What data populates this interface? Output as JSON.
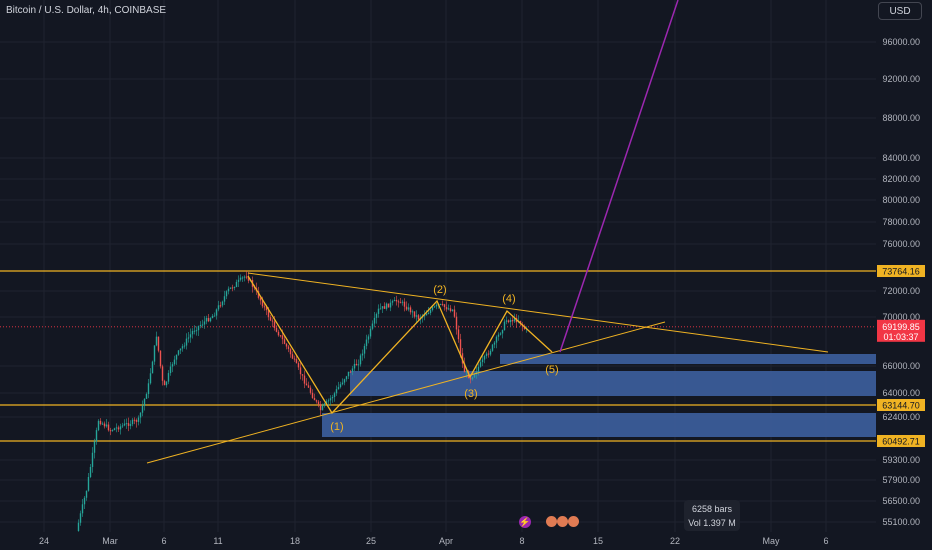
{
  "header": {
    "title": "Bitcoin / U.S. Dollar, 4h, COINBASE",
    "currency_button": "USD"
  },
  "chart_data": {
    "type": "candlestick",
    "symbol": "Bitcoin / U.S. Dollar",
    "interval": "4h",
    "exchange": "COINBASE",
    "y_ticks": [
      96000,
      92000,
      88000,
      84000,
      82000,
      80000,
      78000,
      76000,
      72000,
      70000,
      66000,
      64000,
      62400,
      59300,
      57900,
      56500,
      55100
    ],
    "y_tick_labels": [
      "96000.00",
      "92000.00",
      "88000.00",
      "84000.00",
      "82000.00",
      "80000.00",
      "78000.00",
      "76000.00",
      "72000.00",
      "70000.00",
      "66000.00",
      "64000.00",
      "62400.00",
      "59300.00",
      "57900.00",
      "56500.00",
      "55100.00"
    ],
    "x_tick_labels": [
      "24",
      "Mar",
      "6",
      "11",
      "18",
      "25",
      "Apr",
      "8",
      "15",
      "22",
      "May",
      "6"
    ],
    "current_price": {
      "value": "69199.85",
      "countdown": "01:03:37",
      "color": "#f23645"
    },
    "horizontal_levels": [
      {
        "value": 73764.16,
        "label": "73764.16"
      },
      {
        "value": 63144.7,
        "label": "63144.70"
      },
      {
        "value": 60492.71,
        "label": "60492.71"
      }
    ],
    "wave_labels": [
      "(1)",
      "(2)",
      "(3)",
      "(4)",
      "(5)"
    ],
    "colors": {
      "background": "#131722",
      "up": "#26a69a",
      "down": "#ef5350",
      "levels": "#f0b323",
      "zones": "#3d5f9e",
      "projection": "#9c27b0"
    },
    "bars_info": {
      "bars": "6258 bars",
      "volume": "Vol 1.397 M"
    }
  }
}
